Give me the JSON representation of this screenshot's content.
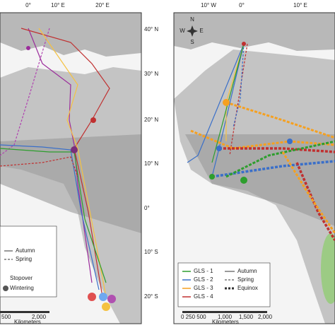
{
  "left_panel": {
    "lon_labels": [
      "0°",
      "10° E",
      "20° E"
    ],
    "lat_labels": [
      "40° N",
      "30° N",
      "20° N",
      "10° N",
      "0°",
      "10° S",
      "20° S"
    ],
    "legend": {
      "autumn": "Autumn",
      "spring": "Spring",
      "stopover": "Stopover",
      "wintering": "Wintering"
    },
    "scale": {
      "mid": "500",
      "end": "2,000",
      "unit": "Kilometers"
    }
  },
  "right_panel": {
    "lon_labels": [
      "10° W",
      "0°",
      "10° E"
    ],
    "compass": {
      "n": "N",
      "s": "S",
      "e": "E",
      "w": "W"
    },
    "legend": {
      "gls1": "GLS - 1",
      "gls2": "GLS - 2",
      "gls3": "GLS - 3",
      "gls4": "GLS - 4",
      "autumn": "Autumn",
      "spring": "Spring",
      "equinox": "Equinox"
    },
    "scale": {
      "start": "0 250 500",
      "a": "1,000",
      "b": "1,500",
      "c": "2,000",
      "unit": "Kilometers"
    }
  }
}
